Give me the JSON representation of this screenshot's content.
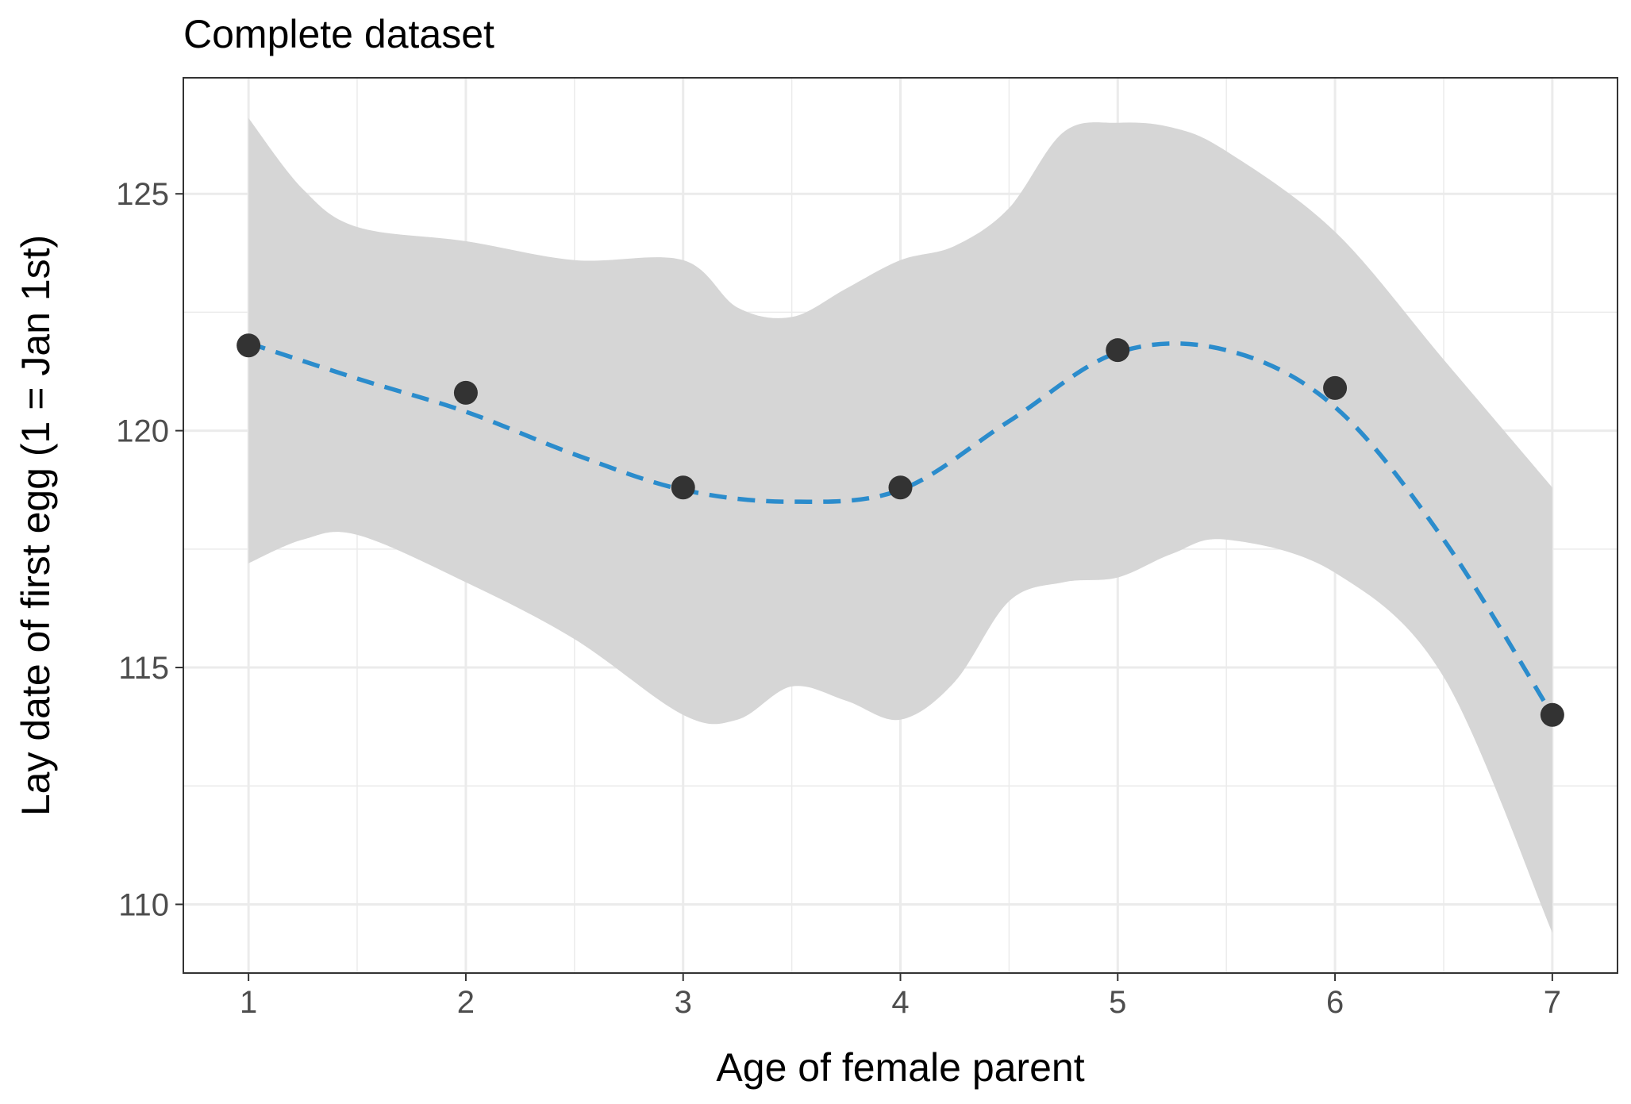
{
  "chart_data": {
    "type": "scatter",
    "title": "Complete dataset",
    "xlabel": "Age of female parent",
    "ylabel": "Lay date of first egg (1 = Jan 1st)",
    "xlim": [
      0.7,
      7.3
    ],
    "ylim": [
      108.55,
      127.45
    ],
    "x_ticks": [
      1,
      2,
      3,
      4,
      5,
      6,
      7
    ],
    "y_ticks": [
      110,
      115,
      120,
      125
    ],
    "x_tick_labels": [
      "1",
      "2",
      "3",
      "4",
      "5",
      "6",
      "7"
    ],
    "y_tick_labels": [
      "110",
      "115",
      "120",
      "125"
    ],
    "grid": true,
    "points": {
      "x": [
        1,
        2,
        3,
        4,
        5,
        6,
        7
      ],
      "y": [
        121.8,
        120.8,
        118.8,
        118.8,
        121.7,
        120.9,
        114.0
      ]
    },
    "smooth_line": {
      "x": [
        1,
        1.5,
        2,
        2.5,
        3,
        3.5,
        4,
        4.5,
        5,
        5.5,
        6,
        6.5,
        7
      ],
      "y": [
        121.85,
        121.1,
        120.4,
        119.5,
        118.75,
        118.5,
        118.75,
        120.2,
        121.65,
        121.7,
        120.5,
        117.7,
        114.0
      ]
    },
    "confidence_band": {
      "x": [
        1,
        1.25,
        1.5,
        2,
        2.5,
        3,
        3.25,
        3.5,
        3.75,
        4,
        4.25,
        4.5,
        4.75,
        5,
        5.25,
        5.5,
        6,
        6.5,
        7
      ],
      "upper": [
        126.6,
        125.1,
        124.3,
        124.0,
        123.6,
        123.6,
        122.6,
        122.4,
        123.0,
        123.6,
        123.9,
        124.7,
        126.3,
        126.5,
        126.4,
        125.9,
        124.2,
        121.5,
        118.8
      ],
      "lower": [
        117.2,
        117.7,
        117.8,
        116.8,
        115.6,
        114.0,
        113.9,
        114.6,
        114.3,
        113.9,
        114.7,
        116.4,
        116.8,
        116.9,
        117.4,
        117.7,
        117.0,
        114.8,
        109.4
      ]
    },
    "colors": {
      "points": "#333333",
      "line": "#2b8ccc",
      "band": "#d6d6d6",
      "grid": "#ebebeb",
      "panel_border": "#333333"
    }
  }
}
